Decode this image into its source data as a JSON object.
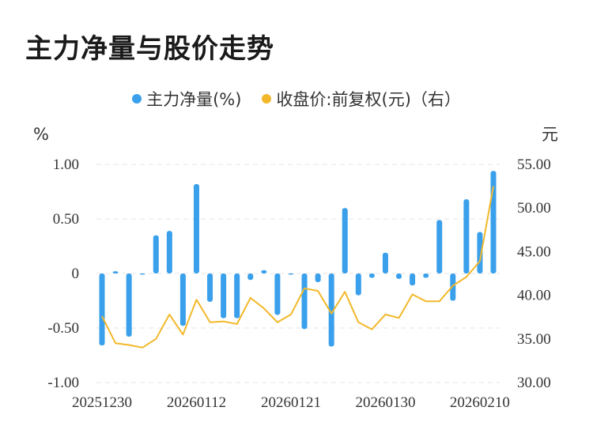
{
  "chart_data": {
    "type": "bar",
    "title": "主力净量与股价走势",
    "legend": [
      "主力净量(%)",
      "收盘价:前复权(元)（右）"
    ],
    "y_left_unit": "%",
    "y_right_unit": "元",
    "y_left_ticks": [
      "1.00",
      "0.50",
      "0",
      "-0.50",
      "-1.00"
    ],
    "y_right_ticks": [
      "55.00",
      "50.00",
      "45.00",
      "40.00",
      "35.00",
      "30.00"
    ],
    "x_tick_labels": [
      "20251230",
      "20260112",
      "20260121",
      "20260130",
      "20260210"
    ],
    "ylim_left": [
      -1.0,
      1.0
    ],
    "ylim_right": [
      30.0,
      55.0
    ],
    "grid": true,
    "legend_position": "top",
    "colors": {
      "bar": "#3aa0ec",
      "line": "#f2b82a",
      "grid": "#e6e6e6"
    },
    "series": [
      {
        "name": "主力净量(%)",
        "type": "bar",
        "values": [
          -0.66,
          0.02,
          -0.58,
          -0.01,
          0.35,
          0.39,
          -0.48,
          0.82,
          -0.26,
          -0.41,
          -0.41,
          -0.06,
          0.03,
          -0.38,
          -0.01,
          -0.51,
          -0.08,
          -0.67,
          0.6,
          -0.2,
          -0.04,
          0.19,
          -0.05,
          -0.11,
          -0.04,
          0.49,
          -0.25,
          0.68,
          0.38,
          0.94
        ]
      },
      {
        "name": "收盘价:前复权(元)（右）",
        "type": "line",
        "values": [
          37.6,
          34.5,
          34.3,
          34.0,
          35.0,
          37.8,
          35.5,
          39.5,
          36.9,
          37.0,
          36.7,
          39.7,
          38.5,
          36.9,
          37.8,
          40.8,
          40.5,
          37.9,
          40.4,
          36.9,
          36.1,
          37.8,
          37.4,
          40.1,
          39.3,
          39.3,
          41.1,
          42.1,
          43.9,
          52.5
        ]
      }
    ]
  }
}
